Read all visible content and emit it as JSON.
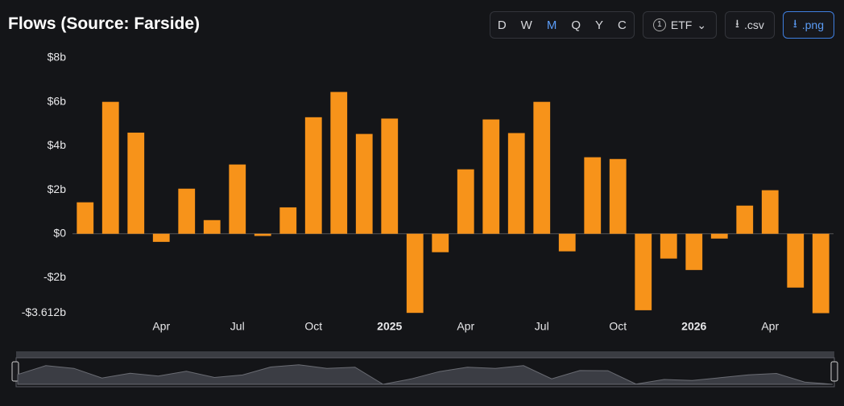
{
  "header": {
    "title": "Flows (Source: Farside)",
    "periods": [
      "D",
      "W",
      "M",
      "Q",
      "Y",
      "C"
    ],
    "active_period": "M",
    "filter_count": "1",
    "filter": "ETF",
    "csv": ".csv",
    "png": ".png"
  },
  "chart_data": {
    "type": "bar",
    "color": "#f7931a",
    "categories": [
      null,
      null,
      null,
      "Apr",
      null,
      null,
      "Jul",
      null,
      null,
      "Oct",
      null,
      null,
      "2025",
      null,
      null,
      "Apr",
      null,
      null,
      "Jul",
      null,
      null,
      "Oct",
      null,
      null,
      "2026",
      null,
      null,
      "Apr",
      null,
      null
    ],
    "values": [
      1.43,
      6.0,
      4.6,
      -0.37,
      2.05,
      0.62,
      3.15,
      -0.1,
      1.2,
      5.3,
      6.45,
      4.54,
      5.24,
      -3.6,
      -0.84,
      2.93,
      5.2,
      4.58,
      6.0,
      -0.8,
      3.48,
      3.4,
      -3.48,
      -1.13,
      -1.65,
      -0.22,
      1.28,
      1.98,
      -2.45,
      -3.612
    ],
    "ylim": [
      -3.612,
      8
    ],
    "yticks": [
      {
        "value": -3.612,
        "label": "-$3.612b"
      },
      {
        "value": -2,
        "label": "-$2b"
      },
      {
        "value": 0,
        "label": "$0"
      },
      {
        "value": 2,
        "label": "$2b"
      },
      {
        "value": 4,
        "label": "$4b"
      },
      {
        "value": 6,
        "label": "$6b"
      },
      {
        "value": 8,
        "label": "$8b"
      }
    ],
    "grid": false
  }
}
